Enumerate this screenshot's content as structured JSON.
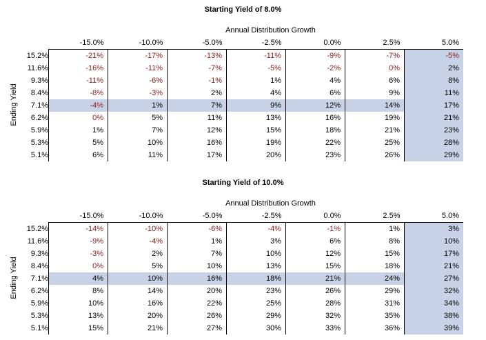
{
  "shared": {
    "column_group_label": "Annual Distribution Growth",
    "y_axis_label": "Ending Yield",
    "columns": [
      "-15.0%",
      "-10.0%",
      "-5.0%",
      "-2.5%",
      "0.0%",
      "2.5%",
      "5.0%"
    ],
    "rows": [
      "15.2%",
      "11.6%",
      "9.3%",
      "8.4%",
      "7.1%",
      "6.2%",
      "5.9%",
      "5.3%",
      "5.1%"
    ],
    "highlight_row_index": 4,
    "highlight_col_index": 6,
    "negative_color": "#8b1a1a",
    "highlight_color": "#c8d2e6"
  },
  "tables": [
    {
      "title": "Starting Yield of 8.0%",
      "cells": [
        [
          "-21%",
          "-17%",
          "-13%",
          "-11%",
          "-9%",
          "-7%",
          "-5%"
        ],
        [
          "-16%",
          "-11%",
          "-7%",
          "-5%",
          "-2%",
          "0%",
          "2%"
        ],
        [
          "-11%",
          "-6%",
          "-1%",
          "1%",
          "4%",
          "6%",
          "8%"
        ],
        [
          "-8%",
          "-3%",
          "2%",
          "4%",
          "6%",
          "9%",
          "11%"
        ],
        [
          "-4%",
          "1%",
          "7%",
          "9%",
          "12%",
          "14%",
          "17%"
        ],
        [
          "0%",
          "5%",
          "11%",
          "13%",
          "16%",
          "19%",
          "21%"
        ],
        [
          "1%",
          "7%",
          "12%",
          "15%",
          "18%",
          "21%",
          "23%"
        ],
        [
          "5%",
          "10%",
          "16%",
          "19%",
          "22%",
          "25%",
          "28%"
        ],
        [
          "6%",
          "11%",
          "17%",
          "20%",
          "23%",
          "26%",
          "29%"
        ]
      ],
      "red_cells": [
        [
          0,
          0
        ],
        [
          0,
          1
        ],
        [
          0,
          2
        ],
        [
          0,
          3
        ],
        [
          0,
          4
        ],
        [
          0,
          5
        ],
        [
          0,
          6
        ],
        [
          1,
          0
        ],
        [
          1,
          1
        ],
        [
          1,
          2
        ],
        [
          1,
          3
        ],
        [
          1,
          4
        ],
        [
          1,
          5
        ],
        [
          2,
          0
        ],
        [
          2,
          1
        ],
        [
          2,
          2
        ],
        [
          3,
          0
        ],
        [
          3,
          1
        ],
        [
          4,
          0
        ],
        [
          5,
          0
        ]
      ]
    },
    {
      "title": "Starting Yield of 10.0%",
      "cells": [
        [
          "-14%",
          "-10%",
          "-6%",
          "-4%",
          "-1%",
          "1%",
          "3%"
        ],
        [
          "-9%",
          "-4%",
          "1%",
          "3%",
          "6%",
          "8%",
          "10%"
        ],
        [
          "-3%",
          "2%",
          "7%",
          "10%",
          "12%",
          "15%",
          "17%"
        ],
        [
          "0%",
          "5%",
          "10%",
          "13%",
          "15%",
          "18%",
          "21%"
        ],
        [
          "4%",
          "10%",
          "16%",
          "18%",
          "21%",
          "24%",
          "27%"
        ],
        [
          "8%",
          "14%",
          "20%",
          "23%",
          "26%",
          "29%",
          "32%"
        ],
        [
          "10%",
          "16%",
          "22%",
          "25%",
          "28%",
          "31%",
          "34%"
        ],
        [
          "13%",
          "20%",
          "26%",
          "29%",
          "32%",
          "35%",
          "38%"
        ],
        [
          "15%",
          "21%",
          "27%",
          "30%",
          "33%",
          "36%",
          "39%"
        ]
      ],
      "red_cells": [
        [
          0,
          0
        ],
        [
          0,
          1
        ],
        [
          0,
          2
        ],
        [
          0,
          3
        ],
        [
          0,
          4
        ],
        [
          1,
          0
        ],
        [
          1,
          1
        ],
        [
          2,
          0
        ],
        [
          3,
          0
        ]
      ]
    }
  ]
}
